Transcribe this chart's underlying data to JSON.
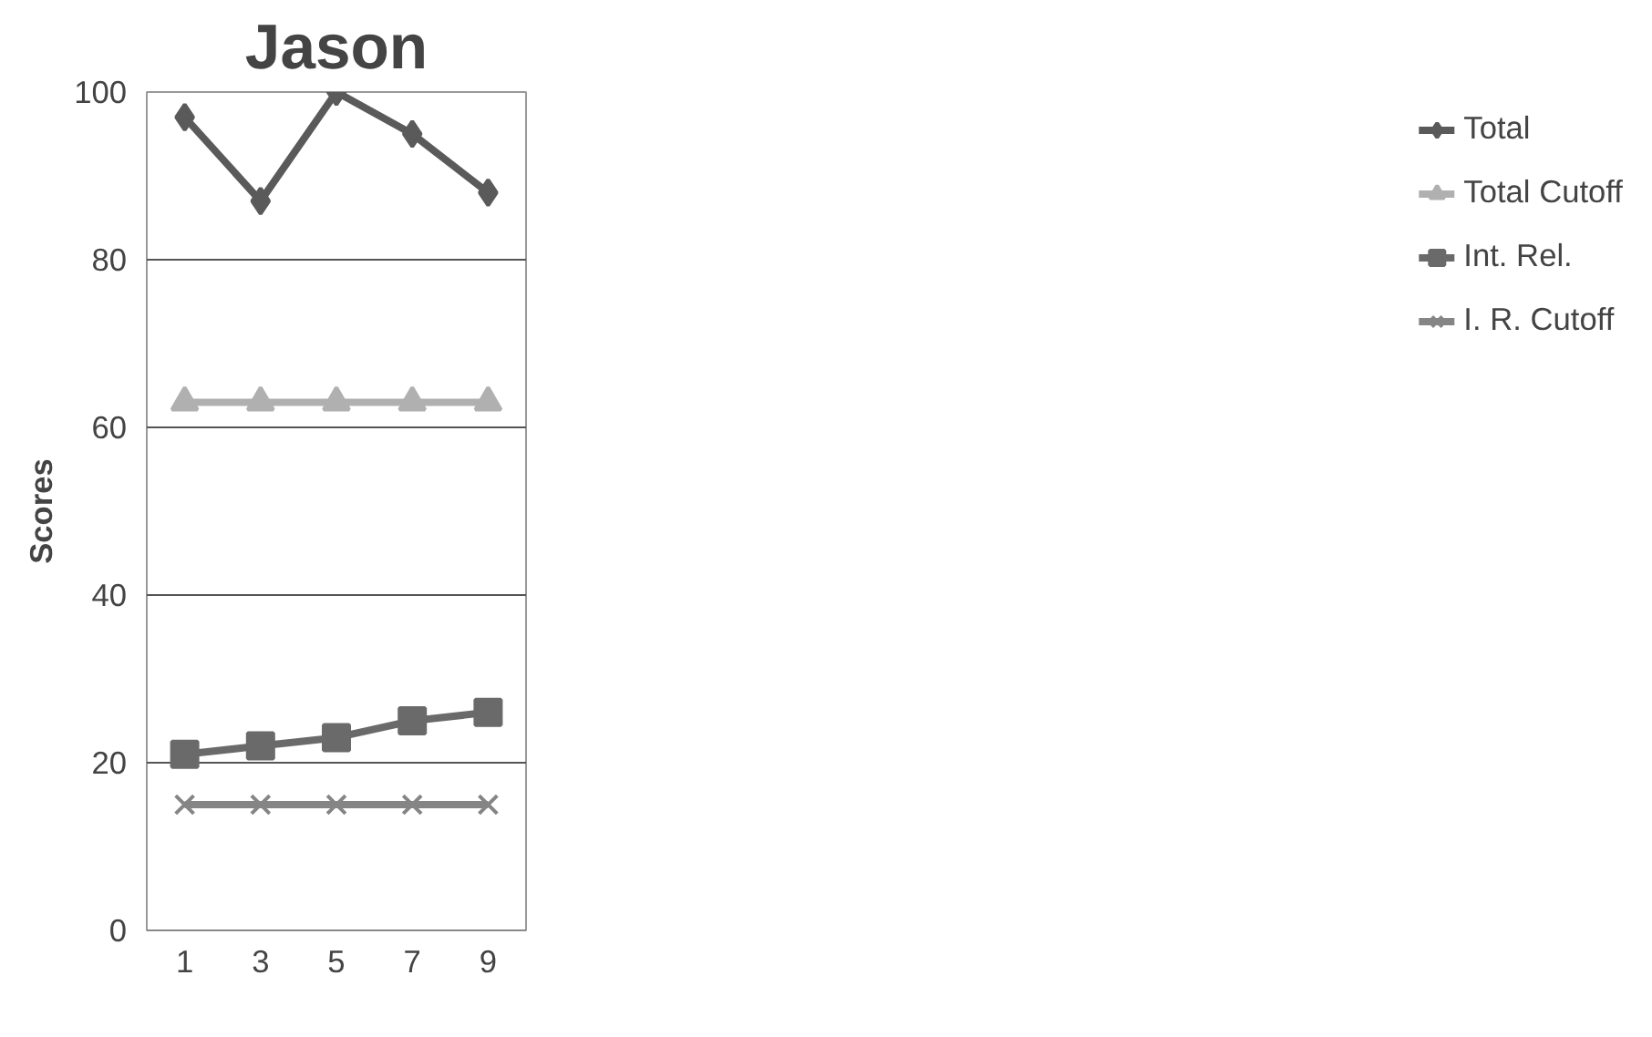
{
  "chart_data": {
    "type": "line",
    "title": "Jason",
    "ylabel": "Scores",
    "categories": [
      "1",
      "3",
      "5",
      "7",
      "9"
    ],
    "ylim": [
      0,
      100
    ],
    "yticks": [
      0,
      20,
      40,
      60,
      80,
      100
    ],
    "grid": "y",
    "legend": "right",
    "series": [
      {
        "name": "Total",
        "color": "#5a5a5a",
        "marker": "diamond",
        "values": [
          97,
          87,
          100,
          95,
          88
        ]
      },
      {
        "name": "Total Cutoff",
        "color": "#b0b0b0",
        "marker": "triangle",
        "values": [
          63,
          63,
          63,
          63,
          63
        ]
      },
      {
        "name": "Int. Rel.",
        "color": "#6a6a6a",
        "marker": "square",
        "values": [
          21,
          22,
          23,
          25,
          26
        ]
      },
      {
        "name": "I. R. Cutoff",
        "color": "#858585",
        "marker": "cross",
        "values": [
          15,
          15,
          15,
          15,
          15
        ]
      }
    ]
  }
}
